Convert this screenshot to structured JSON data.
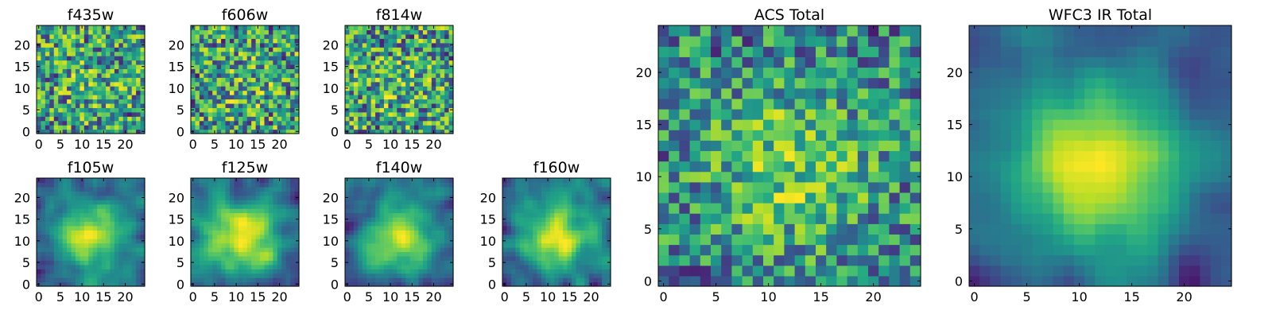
{
  "chart_data": [
    {
      "type": "heatmap",
      "title": "f435w",
      "grid_size": 25,
      "xticks": [
        0,
        5,
        10,
        15,
        20
      ],
      "yticks": [
        0,
        5,
        10,
        15,
        20
      ],
      "colormap": "viridis",
      "texture": "noisy",
      "seed": 11
    },
    {
      "type": "heatmap",
      "title": "f606w",
      "grid_size": 25,
      "xticks": [
        0,
        5,
        10,
        15,
        20
      ],
      "yticks": [
        0,
        5,
        10,
        15,
        20
      ],
      "colormap": "viridis",
      "texture": "noisy",
      "seed": 23
    },
    {
      "type": "heatmap",
      "title": "f814w",
      "grid_size": 25,
      "xticks": [
        0,
        5,
        10,
        15,
        20
      ],
      "yticks": [
        0,
        5,
        10,
        15,
        20
      ],
      "colormap": "viridis",
      "texture": "noisy",
      "seed": 37
    },
    {
      "type": "heatmap",
      "title": "f105w",
      "grid_size": 25,
      "xticks": [
        0,
        5,
        10,
        15,
        20
      ],
      "yticks": [
        0,
        5,
        10,
        15,
        20
      ],
      "colormap": "viridis",
      "texture": "smooth",
      "seed": 41
    },
    {
      "type": "heatmap",
      "title": "f125w",
      "grid_size": 25,
      "xticks": [
        0,
        5,
        10,
        15,
        20
      ],
      "yticks": [
        0,
        5,
        10,
        15,
        20
      ],
      "colormap": "viridis",
      "texture": "smooth",
      "seed": 53
    },
    {
      "type": "heatmap",
      "title": "f140w",
      "grid_size": 25,
      "xticks": [
        0,
        5,
        10,
        15,
        20
      ],
      "yticks": [
        0,
        5,
        10,
        15,
        20
      ],
      "colormap": "viridis",
      "texture": "smooth",
      "seed": 67
    },
    {
      "type": "heatmap",
      "title": "f160w",
      "grid_size": 25,
      "xticks": [
        0,
        5,
        10,
        15,
        20
      ],
      "yticks": [
        0,
        5,
        10,
        15,
        20
      ],
      "colormap": "viridis",
      "texture": "smooth",
      "seed": 79
    },
    {
      "type": "heatmap",
      "title": "ACS Total",
      "grid_size": 25,
      "xticks": [
        0,
        5,
        10,
        15,
        20
      ],
      "yticks": [
        0,
        5,
        10,
        15,
        20
      ],
      "colormap": "viridis",
      "texture": "noisy-central",
      "seed": 97
    },
    {
      "type": "heatmap",
      "title": "WFC3 IR Total",
      "grid_size": 25,
      "xticks": [
        0,
        5,
        10,
        15,
        20
      ],
      "yticks": [
        0,
        5,
        10,
        15,
        20
      ],
      "colormap": "viridis",
      "texture": "smooth-central",
      "seed": 131
    }
  ]
}
